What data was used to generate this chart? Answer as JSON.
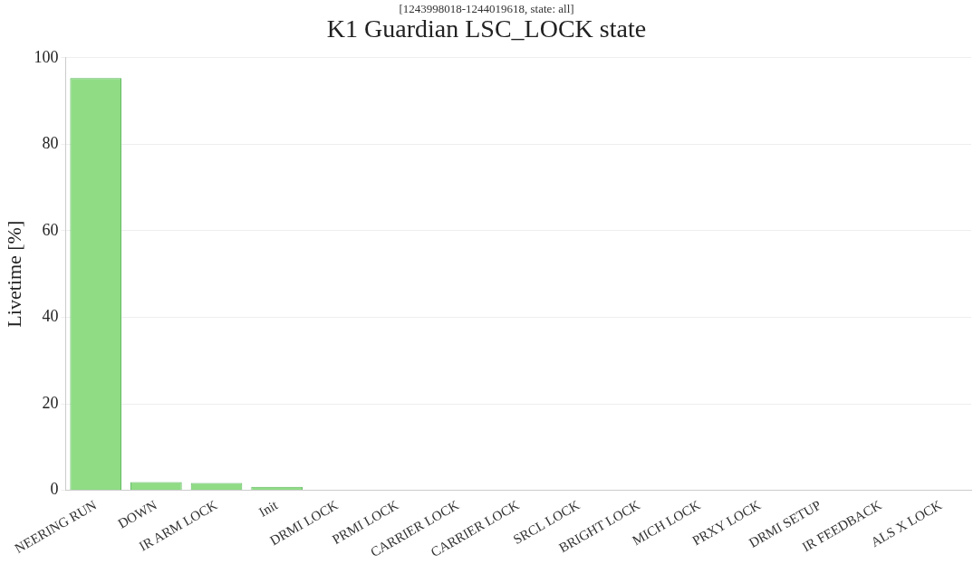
{
  "chart_data": {
    "type": "bar",
    "title": "K1 Guardian LSC_LOCK state",
    "subtitle": "[1243998018-1244019618, state: all]",
    "ylabel": "Livetime [%]",
    "categories": [
      "NEERING RUN",
      "DOWN",
      "IR ARM LOCK",
      "Init",
      "DRMI LOCK",
      "PRMI LOCK",
      "CARRIER LOCK",
      "CARRIER LOCK",
      "SRCL LOCK",
      "BRIGHT LOCK",
      "MICH LOCK",
      "PRXY LOCK",
      "DRMI SETUP",
      "IR FEEDBACK",
      "ALS X LOCK"
    ],
    "values": [
      95.3,
      1.9,
      1.7,
      0.8,
      0,
      0,
      0,
      0,
      0,
      0,
      0,
      0,
      0,
      0,
      0
    ],
    "color": "#8fdc85",
    "ylim": [
      0,
      100
    ],
    "yticks": [
      0,
      20,
      40,
      60,
      80,
      100
    ],
    "grid": "y"
  }
}
